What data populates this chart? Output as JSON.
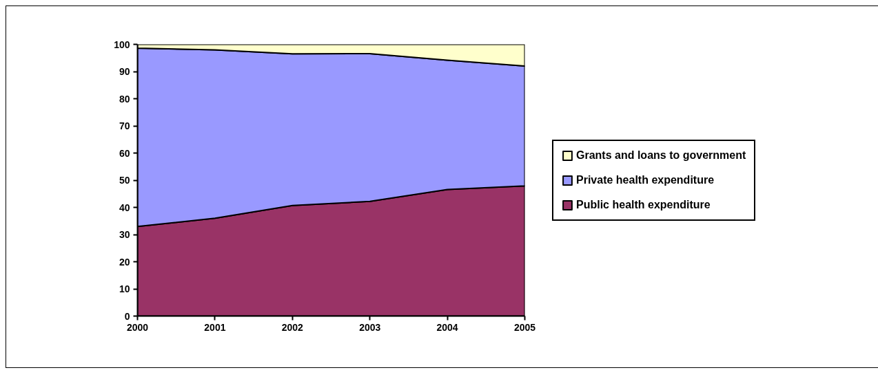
{
  "chart_data": {
    "type": "area",
    "stacked": true,
    "x": [
      2000,
      2001,
      2002,
      2003,
      2004,
      2005
    ],
    "series": [
      {
        "name": "Public health expenditure",
        "color": "#993366",
        "values": [
          33.0,
          36.0,
          40.7,
          42.2,
          46.6,
          47.9
        ]
      },
      {
        "name": "Private health expenditure",
        "color": "#9999ff",
        "values": [
          65.6,
          62.0,
          55.8,
          54.4,
          47.6,
          44.1
        ]
      },
      {
        "name": "Grants and loans to government",
        "color": "#ffffcc",
        "values": [
          1.4,
          2.0,
          3.5,
          3.4,
          5.8,
          8.0
        ]
      }
    ],
    "xlim": [
      2000,
      2005
    ],
    "xticks": [
      2000,
      2001,
      2002,
      2003,
      2004,
      2005
    ],
    "ylim": [
      0,
      100
    ],
    "yticks": [
      0,
      10,
      20,
      30,
      40,
      50,
      60,
      70,
      80,
      90,
      100
    ],
    "legend": "right"
  }
}
